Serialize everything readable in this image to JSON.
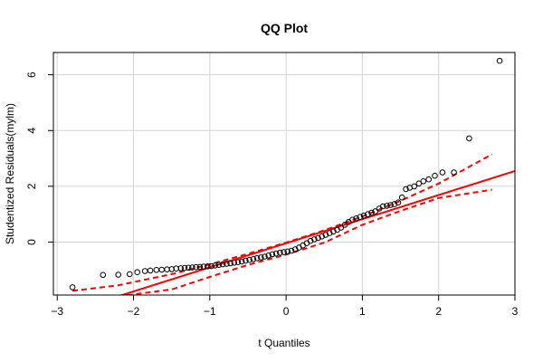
{
  "chart_data": {
    "type": "scatter",
    "title": "QQ Plot",
    "xlabel": "t Quantiles",
    "ylabel": "Studentized Residuals(mylm)",
    "xlim": [
      -3.05,
      3.0
    ],
    "ylim": [
      -1.9,
      6.8
    ],
    "xticks": [
      -3,
      -2,
      -1,
      0,
      1,
      2,
      3
    ],
    "xtick_labels": [
      "−3",
      "−2",
      "−1",
      "0",
      "1",
      "2",
      "3"
    ],
    "yticks": [
      0,
      2,
      4,
      6
    ],
    "ytick_labels": [
      "0",
      "2",
      "4",
      "6"
    ],
    "grid": true,
    "colors": {
      "points": "#000000",
      "line": "#ff0000",
      "grid": "#d3d3d3"
    },
    "points": [
      [
        -2.8,
        -1.62
      ],
      [
        -2.4,
        -1.18
      ],
      [
        -2.2,
        -1.17
      ],
      [
        -2.05,
        -1.15
      ],
      [
        -1.95,
        -1.08
      ],
      [
        -1.85,
        -1.04
      ],
      [
        -1.78,
        -1.02
      ],
      [
        -1.7,
        -1.0
      ],
      [
        -1.63,
        -0.99
      ],
      [
        -1.56,
        -0.98
      ],
      [
        -1.5,
        -0.97
      ],
      [
        -1.44,
        -0.95
      ],
      [
        -1.38,
        -0.94
      ],
      [
        -1.33,
        -0.93
      ],
      [
        -1.28,
        -0.92
      ],
      [
        -1.23,
        -0.91
      ],
      [
        -1.18,
        -0.9
      ],
      [
        -1.13,
        -0.89
      ],
      [
        -1.08,
        -0.88
      ],
      [
        -1.03,
        -0.87
      ],
      [
        -0.98,
        -0.86
      ],
      [
        -0.93,
        -0.84
      ],
      [
        -0.88,
        -0.82
      ],
      [
        -0.83,
        -0.8
      ],
      [
        -0.78,
        -0.78
      ],
      [
        -0.73,
        -0.76
      ],
      [
        -0.68,
        -0.74
      ],
      [
        -0.63,
        -0.72
      ],
      [
        -0.58,
        -0.7
      ],
      [
        -0.53,
        -0.67
      ],
      [
        -0.48,
        -0.64
      ],
      [
        -0.43,
        -0.61
      ],
      [
        -0.38,
        -0.58
      ],
      [
        -0.33,
        -0.55
      ],
      [
        -0.28,
        -0.52
      ],
      [
        -0.23,
        -0.48
      ],
      [
        -0.18,
        -0.44
      ],
      [
        -0.13,
        -0.41
      ],
      [
        -0.08,
        -0.38
      ],
      [
        -0.03,
        -0.36
      ],
      [
        0.02,
        -0.34
      ],
      [
        0.07,
        -0.31
      ],
      [
        0.12,
        -0.26
      ],
      [
        0.17,
        -0.2
      ],
      [
        0.22,
        -0.12
      ],
      [
        0.27,
        -0.04
      ],
      [
        0.32,
        0.04
      ],
      [
        0.37,
        0.1
      ],
      [
        0.42,
        0.15
      ],
      [
        0.47,
        0.2
      ],
      [
        0.52,
        0.26
      ],
      [
        0.57,
        0.32
      ],
      [
        0.62,
        0.38
      ],
      [
        0.67,
        0.44
      ],
      [
        0.72,
        0.52
      ],
      [
        0.77,
        0.62
      ],
      [
        0.82,
        0.72
      ],
      [
        0.87,
        0.8
      ],
      [
        0.92,
        0.85
      ],
      [
        0.97,
        0.9
      ],
      [
        1.02,
        0.95
      ],
      [
        1.07,
        1.0
      ],
      [
        1.12,
        1.05
      ],
      [
        1.17,
        1.1
      ],
      [
        1.22,
        1.2
      ],
      [
        1.27,
        1.28
      ],
      [
        1.32,
        1.3
      ],
      [
        1.37,
        1.33
      ],
      [
        1.42,
        1.36
      ],
      [
        1.47,
        1.42
      ],
      [
        1.52,
        1.6
      ],
      [
        1.57,
        1.9
      ],
      [
        1.62,
        1.95
      ],
      [
        1.68,
        2.0
      ],
      [
        1.74,
        2.1
      ],
      [
        1.8,
        2.18
      ],
      [
        1.87,
        2.25
      ],
      [
        1.95,
        2.38
      ],
      [
        2.05,
        2.5
      ],
      [
        2.2,
        2.5
      ],
      [
        2.4,
        3.72
      ],
      [
        2.8,
        6.5
      ]
    ],
    "fit_line": {
      "x": [
        -3.05,
        3.0
      ],
      "y": [
        -2.68,
        2.55
      ]
    },
    "band_upper": {
      "x": [
        -2.8,
        -2.2,
        -1.5,
        -1.0,
        -0.5,
        0.0,
        0.5,
        1.0,
        1.5,
        2.0,
        2.7
      ],
      "y": [
        -1.75,
        -1.55,
        -1.15,
        -0.8,
        -0.42,
        -0.02,
        0.42,
        0.92,
        1.48,
        2.1,
        3.15
      ]
    },
    "band_lower": {
      "x": [
        -2.2,
        -1.5,
        -1.0,
        -0.5,
        0.0,
        0.5,
        1.0,
        1.5,
        2.0,
        2.7
      ],
      "y": [
        -1.95,
        -1.7,
        -1.25,
        -0.82,
        -0.45,
        -0.02,
        0.62,
        1.12,
        1.58,
        1.88
      ]
    }
  }
}
